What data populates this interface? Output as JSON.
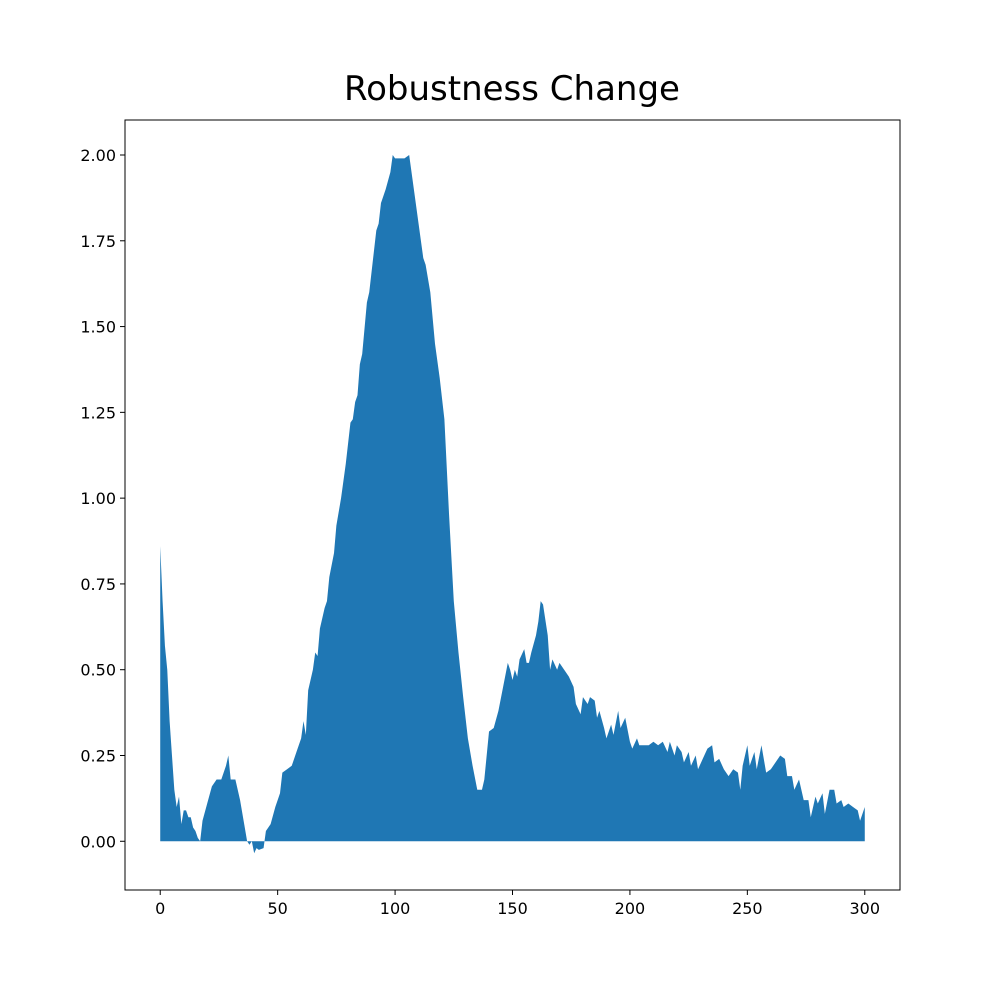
{
  "chart_data": {
    "type": "area",
    "title": "Robustness Change",
    "color": "#1f77b4",
    "baseline": 0,
    "xlim": [
      -15,
      315
    ],
    "ylim": [
      -0.142,
      2.102
    ],
    "xticks": [
      0,
      50,
      100,
      150,
      200,
      250,
      300
    ],
    "yticks": [
      {
        "value": 0,
        "label": "0.00"
      },
      {
        "value": 0.25,
        "label": "0.25"
      },
      {
        "value": 0.5,
        "label": "0.50"
      },
      {
        "value": 0.75,
        "label": "0.75"
      },
      {
        "value": 1,
        "label": "1.00"
      },
      {
        "value": 1.25,
        "label": "1.25"
      },
      {
        "value": 1.5,
        "label": "1.50"
      },
      {
        "value": 1.75,
        "label": "1.75"
      },
      {
        "value": 2,
        "label": "2.00"
      }
    ],
    "x": [
      0,
      1,
      2,
      3,
      4,
      5,
      6,
      7,
      8,
      9,
      10,
      11,
      12,
      13,
      14,
      15,
      16,
      17,
      18,
      20,
      22,
      24,
      26,
      28,
      29,
      30,
      32,
      34,
      36,
      37,
      38,
      39,
      40,
      41,
      42,
      44,
      45,
      47,
      49,
      51,
      52,
      54,
      56,
      58,
      60,
      61,
      62,
      63,
      65,
      66,
      67,
      68,
      70,
      71,
      72,
      74,
      75,
      77,
      79,
      81,
      82,
      83,
      84,
      85,
      86,
      88,
      89,
      90,
      92,
      93,
      94,
      96,
      98,
      99,
      100,
      102,
      104,
      106,
      108,
      110,
      112,
      113,
      115,
      117,
      119,
      121,
      123,
      125,
      127,
      129,
      131,
      133,
      135,
      137,
      138,
      140,
      142,
      144,
      146,
      148,
      149,
      150,
      151,
      152,
      153,
      155,
      156,
      157,
      158,
      160,
      161,
      162,
      163,
      165,
      166,
      167,
      169,
      170,
      172,
      174,
      176,
      177,
      179,
      180,
      182,
      183,
      185,
      186,
      187,
      189,
      190,
      192,
      193,
      195,
      196,
      198,
      200,
      201,
      203,
      204,
      206,
      208,
      210,
      212,
      214,
      216,
      217,
      219,
      220,
      222,
      223,
      225,
      226,
      228,
      229,
      231,
      233,
      235,
      236,
      238,
      240,
      242,
      244,
      246,
      247,
      248,
      250,
      251,
      253,
      254,
      256,
      258,
      260,
      262,
      264,
      266,
      267,
      269,
      270,
      272,
      274,
      276,
      277,
      279,
      280,
      282,
      283,
      285,
      287,
      288,
      290,
      291,
      293,
      295,
      297,
      298,
      300
    ],
    "values": [
      0.86,
      0.7,
      0.57,
      0.5,
      0.35,
      0.25,
      0.15,
      0.1,
      0.13,
      0.05,
      0.09,
      0.09,
      0.07,
      0.07,
      0.04,
      0.03,
      0.01,
      0.0,
      0.06,
      0.11,
      0.16,
      0.18,
      0.18,
      0.22,
      0.25,
      0.18,
      0.18,
      0.12,
      0.04,
      0.0,
      -0.01,
      0.0,
      -0.035,
      -0.02,
      -0.025,
      -0.02,
      0.03,
      0.05,
      0.1,
      0.14,
      0.2,
      0.21,
      0.22,
      0.26,
      0.3,
      0.35,
      0.31,
      0.44,
      0.5,
      0.55,
      0.54,
      0.62,
      0.68,
      0.7,
      0.77,
      0.84,
      0.92,
      1.0,
      1.1,
      1.22,
      1.23,
      1.28,
      1.3,
      1.39,
      1.42,
      1.57,
      1.6,
      1.66,
      1.78,
      1.8,
      1.86,
      1.9,
      1.95,
      2.0,
      1.99,
      1.99,
      1.99,
      2.0,
      1.9,
      1.8,
      1.7,
      1.68,
      1.6,
      1.45,
      1.35,
      1.23,
      0.95,
      0.7,
      0.55,
      0.42,
      0.3,
      0.22,
      0.15,
      0.15,
      0.18,
      0.32,
      0.33,
      0.38,
      0.45,
      0.52,
      0.5,
      0.47,
      0.5,
      0.48,
      0.53,
      0.56,
      0.52,
      0.52,
      0.55,
      0.6,
      0.64,
      0.7,
      0.69,
      0.6,
      0.5,
      0.53,
      0.5,
      0.52,
      0.5,
      0.48,
      0.45,
      0.4,
      0.37,
      0.42,
      0.4,
      0.42,
      0.41,
      0.36,
      0.38,
      0.33,
      0.3,
      0.34,
      0.31,
      0.38,
      0.33,
      0.36,
      0.29,
      0.27,
      0.3,
      0.28,
      0.28,
      0.28,
      0.29,
      0.28,
      0.29,
      0.26,
      0.29,
      0.25,
      0.28,
      0.26,
      0.23,
      0.26,
      0.22,
      0.25,
      0.21,
      0.24,
      0.27,
      0.28,
      0.23,
      0.24,
      0.21,
      0.19,
      0.21,
      0.2,
      0.15,
      0.22,
      0.28,
      0.22,
      0.26,
      0.21,
      0.28,
      0.2,
      0.21,
      0.23,
      0.25,
      0.24,
      0.19,
      0.19,
      0.15,
      0.18,
      0.12,
      0.12,
      0.07,
      0.13,
      0.11,
      0.14,
      0.08,
      0.15,
      0.15,
      0.11,
      0.12,
      0.1,
      0.11,
      0.1,
      0.09,
      0.06,
      0.1
    ]
  }
}
